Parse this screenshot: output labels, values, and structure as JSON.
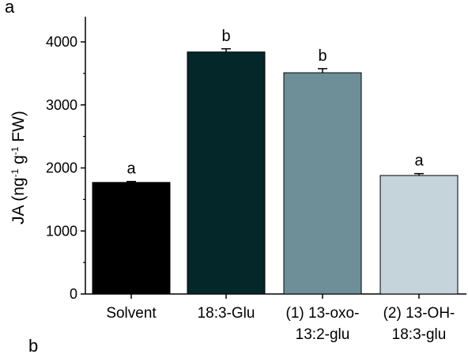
{
  "panel_labels": [
    "a",
    "b"
  ],
  "chart_data": {
    "type": "bar",
    "ylabel": {
      "base": "JA (ng",
      "sup1": "-1",
      "mid": " g",
      "sup2": "-1",
      "tail": " FW)"
    },
    "ylim": [
      0,
      4400
    ],
    "yticks": [
      0,
      1000,
      2000,
      3000,
      4000
    ],
    "grid": false,
    "categories": [
      [
        "Solvent"
      ],
      [
        "18:3-Glu"
      ],
      [
        "(1) 13-oxo-",
        "13:2-glu"
      ],
      [
        "(2) 13-OH-",
        "18:3-glu"
      ]
    ],
    "values": [
      1770,
      3840,
      3510,
      1880
    ],
    "errors": [
      15,
      50,
      65,
      30
    ],
    "significance": [
      "a",
      "b",
      "b",
      "a"
    ],
    "colors": [
      "#000000",
      "#04282a",
      "#6e8f98",
      "#c5d3da"
    ]
  }
}
